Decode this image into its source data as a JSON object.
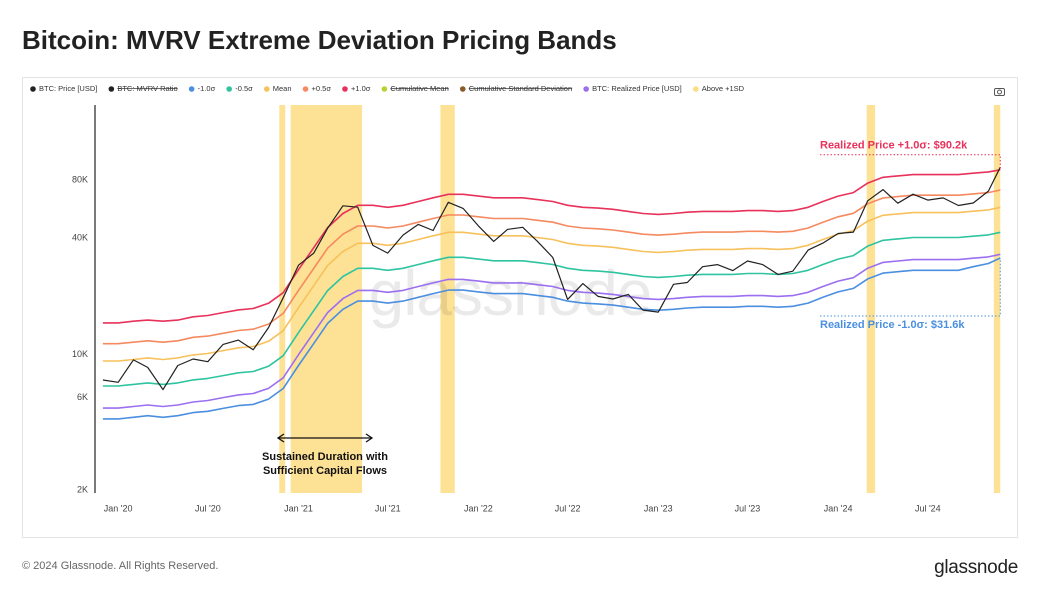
{
  "chart_data": {
    "type": "line",
    "title": "Bitcoin: MVRV Extreme Deviation Pricing Bands",
    "log_scale": true,
    "grid": false,
    "x": [
      "2019-12-01",
      "2020-01-01",
      "2020-02-01",
      "2020-03-01",
      "2020-04-01",
      "2020-05-01",
      "2020-06-01",
      "2020-07-01",
      "2020-08-01",
      "2020-09-01",
      "2020-10-01",
      "2020-11-01",
      "2020-12-01",
      "2021-01-01",
      "2021-02-01",
      "2021-03-01",
      "2021-04-01",
      "2021-05-01",
      "2021-06-01",
      "2021-07-01",
      "2021-08-01",
      "2021-09-01",
      "2021-10-01",
      "2021-11-01",
      "2021-12-01",
      "2022-01-01",
      "2022-02-01",
      "2022-03-01",
      "2022-04-01",
      "2022-05-01",
      "2022-06-01",
      "2022-07-01",
      "2022-08-01",
      "2022-09-01",
      "2022-10-01",
      "2022-11-01",
      "2022-12-01",
      "2023-01-01",
      "2023-02-01",
      "2023-03-01",
      "2023-04-01",
      "2023-05-01",
      "2023-06-01",
      "2023-07-01",
      "2023-08-01",
      "2023-09-01",
      "2023-10-01",
      "2023-11-01",
      "2023-12-01",
      "2024-01-01",
      "2024-02-01",
      "2024-03-01",
      "2024-04-01",
      "2024-05-01",
      "2024-06-01",
      "2024-07-01",
      "2024-08-01",
      "2024-09-01",
      "2024-10-01",
      "2024-11-01",
      "2024-11-25"
    ],
    "xlim": [
      "2019-11-15",
      "2024-12-31"
    ],
    "xticks": [
      {
        "value": "2020-01-01",
        "label": "Jan '20"
      },
      {
        "value": "2020-07-01",
        "label": "Jul '20"
      },
      {
        "value": "2021-01-01",
        "label": "Jan '21"
      },
      {
        "value": "2021-07-01",
        "label": "Jul '21"
      },
      {
        "value": "2022-01-01",
        "label": "Jan '22"
      },
      {
        "value": "2022-07-01",
        "label": "Jul '22"
      },
      {
        "value": "2023-01-01",
        "label": "Jan '23"
      },
      {
        "value": "2023-07-01",
        "label": "Jul '23"
      },
      {
        "value": "2024-01-01",
        "label": "Jan '24"
      },
      {
        "value": "2024-07-01",
        "label": "Jul '24"
      }
    ],
    "ylim": [
      2000,
      195000
    ],
    "yticks": [
      {
        "value": 2000,
        "label": "2K"
      },
      {
        "value": 6000,
        "label": "6K"
      },
      {
        "value": 10000,
        "label": "10K"
      },
      {
        "value": 40000,
        "label": "40K"
      },
      {
        "value": 80000,
        "label": "80K"
      }
    ],
    "series": [
      {
        "name": "BTC: Price [USD]",
        "color": "#222222",
        "values": [
          7400,
          7200,
          9400,
          8600,
          6600,
          8800,
          9500,
          9200,
          11300,
          11900,
          10600,
          13800,
          19700,
          29000,
          33500,
          45000,
          58800,
          57800,
          36700,
          33500,
          41500,
          47100,
          43800,
          61300,
          57000,
          46300,
          38500,
          44400,
          45500,
          38500,
          31800,
          19300,
          23300,
          20000,
          19400,
          20500,
          17000,
          16600,
          23100,
          23600,
          28500,
          29200,
          27200,
          30500,
          29200,
          26000,
          27000,
          34700,
          37700,
          42300,
          43000,
          62400,
          71300,
          60600,
          67500,
          62900,
          64600,
          59000,
          60800,
          70000,
          93000
        ]
      },
      {
        "name": "BTC: MVRV Ratio",
        "color": "#222222",
        "hidden": true
      },
      {
        "name": "-1.0σ",
        "color": "#4a8fe0",
        "values": [
          4660,
          4660,
          4750,
          4840,
          4750,
          4840,
          5020,
          5100,
          5280,
          5460,
          5540,
          5900,
          6690,
          8800,
          11440,
          14520,
          17160,
          18920,
          18920,
          18480,
          18920,
          19800,
          20680,
          21560,
          21560,
          21120,
          20680,
          20680,
          20680,
          20240,
          19800,
          18920,
          18480,
          18300,
          18040,
          17600,
          17160,
          16980,
          17160,
          17420,
          17600,
          17600,
          17600,
          17780,
          17780,
          17600,
          17780,
          18480,
          19800,
          21120,
          22000,
          24640,
          26400,
          26840,
          27280,
          27280,
          27280,
          27280,
          28500,
          29600,
          31600
        ]
      },
      {
        "name": "-0.5σ",
        "color": "#2ec4a0",
        "values": [
          6890,
          6890,
          7020,
          7150,
          7020,
          7150,
          7410,
          7540,
          7800,
          8060,
          8190,
          8710,
          9880,
          13000,
          16900,
          21450,
          25350,
          27950,
          27950,
          27300,
          27950,
          29250,
          30550,
          31850,
          31850,
          31200,
          30550,
          30550,
          30550,
          29900,
          29250,
          27950,
          27300,
          27040,
          26650,
          26000,
          25350,
          25090,
          25350,
          25740,
          26000,
          26000,
          26000,
          26260,
          26260,
          26000,
          26260,
          27300,
          29250,
          31200,
          32500,
          36400,
          39000,
          39650,
          40300,
          40300,
          40300,
          40300,
          40950,
          41600,
          42900
        ]
      },
      {
        "name": "Mean",
        "color": "#f7c15c",
        "values": [
          9280,
          9280,
          9450,
          9630,
          9450,
          9630,
          9980,
          10150,
          10500,
          10850,
          11030,
          11730,
          13300,
          17500,
          22750,
          28880,
          34130,
          37630,
          37630,
          36750,
          37630,
          39380,
          41130,
          42880,
          42880,
          42000,
          41130,
          41130,
          41130,
          40250,
          39380,
          37630,
          36750,
          36400,
          35880,
          35000,
          34130,
          33780,
          34130,
          34650,
          35000,
          35000,
          35000,
          35350,
          35350,
          35000,
          35350,
          36750,
          39380,
          42000,
          43750,
          49000,
          52500,
          53380,
          54250,
          54250,
          54250,
          54250,
          55130,
          56000,
          57750
        ]
      },
      {
        "name": "+0.5σ",
        "color": "#f5895f",
        "values": [
          11400,
          11400,
          11600,
          11800,
          11600,
          11800,
          12300,
          12470,
          12900,
          13330,
          13550,
          14400,
          16340,
          21500,
          27950,
          35480,
          41930,
          46230,
          46230,
          45150,
          46230,
          48380,
          50530,
          52680,
          52680,
          51600,
          50530,
          50530,
          50530,
          49450,
          48380,
          46230,
          45150,
          44720,
          44080,
          43000,
          41930,
          41500,
          41930,
          42570,
          43000,
          43000,
          43000,
          43430,
          43430,
          43000,
          43430,
          45150,
          48380,
          51600,
          53750,
          60200,
          64500,
          65580,
          66650,
          66650,
          66650,
          66650,
          67730,
          68800,
          70950
        ]
      },
      {
        "name": "+1.0σ",
        "color": "#e8315b",
        "values": [
          14600,
          14600,
          14900,
          15100,
          14900,
          15100,
          15700,
          15950,
          16500,
          17050,
          17330,
          18430,
          20900,
          27500,
          35750,
          45380,
          53630,
          59130,
          59130,
          57750,
          59130,
          61880,
          64630,
          67380,
          67380,
          66000,
          64630,
          64630,
          64630,
          63250,
          61880,
          59130,
          57750,
          57200,
          56380,
          55000,
          53630,
          53080,
          53630,
          54450,
          55000,
          55000,
          55000,
          55550,
          55550,
          55000,
          55550,
          57750,
          61880,
          66000,
          68750,
          77000,
          82500,
          83880,
          85250,
          85250,
          85250,
          85250,
          86630,
          88000,
          90200
        ]
      },
      {
        "name": "Cumulative Mean",
        "color": "#b5d334",
        "hidden": true
      },
      {
        "name": "Cumulative Standard Deviation",
        "color": "#8a5a2a",
        "hidden": true
      },
      {
        "name": "BTC: Realized Price [USD]",
        "color": "#9b6ff0",
        "values": [
          5300,
          5300,
          5400,
          5500,
          5400,
          5500,
          5700,
          5800,
          6000,
          6200,
          6300,
          6700,
          7600,
          10000,
          13000,
          16500,
          19500,
          21500,
          21500,
          21000,
          21500,
          22500,
          23500,
          24500,
          24500,
          24000,
          23500,
          23500,
          23500,
          23000,
          22500,
          21500,
          21000,
          20800,
          20500,
          20000,
          19500,
          19300,
          19500,
          19800,
          20000,
          20000,
          20000,
          20200,
          20200,
          20000,
          20200,
          21000,
          22500,
          24000,
          25000,
          28000,
          30000,
          30500,
          31000,
          31000,
          31000,
          31000,
          31500,
          32000,
          33000
        ]
      }
    ],
    "highlight": {
      "name": "Above +1SD",
      "color": "#fddc82",
      "ranges": [
        [
          "2020-11-23",
          "2020-12-05"
        ],
        [
          "2020-12-16",
          "2021-05-10"
        ],
        [
          "2021-10-16",
          "2021-11-14"
        ],
        [
          "2024-02-28",
          "2024-03-16"
        ],
        [
          "2024-11-12",
          "2024-11-25"
        ]
      ]
    },
    "annotations": [
      {
        "text": "Realized Price +1.0σ: $90.2k",
        "color": "#e8315b"
      },
      {
        "text": "Realized Price -1.0σ: $31.6k",
        "color": "#4a8fe0"
      },
      {
        "lines": [
          "Sustained Duration with",
          "Sufficient Capital Flows"
        ]
      }
    ],
    "watermark": "glassnode"
  },
  "footer": {
    "copyright": "© 2024 Glassnode. All Rights Reserved.",
    "logo": "glassnode"
  }
}
